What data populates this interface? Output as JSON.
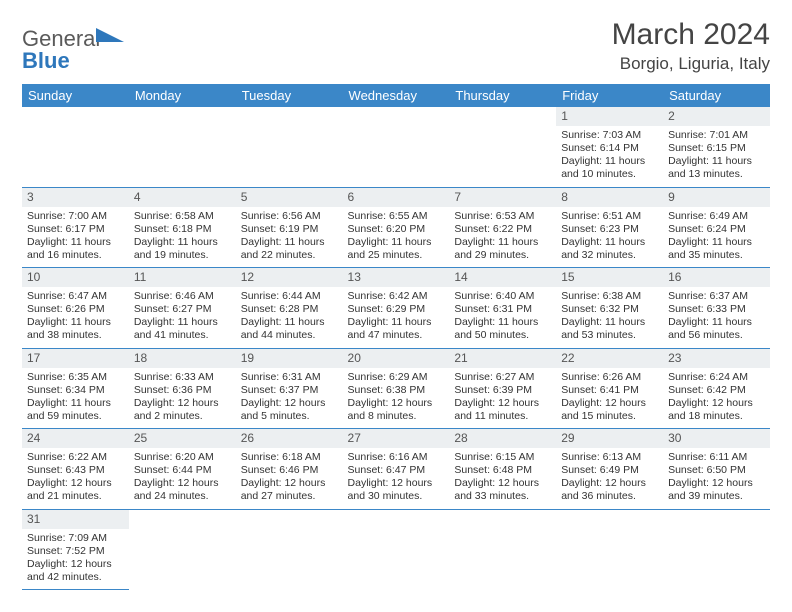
{
  "brand": {
    "name_a": "General",
    "name_b": "Blue"
  },
  "title": "March 2024",
  "location": "Borgio, Liguria, Italy",
  "colors": {
    "header_bg": "#3b87c8",
    "header_text": "#ffffff",
    "daynum_bg": "#eceff1",
    "row_divider": "#3b87c8",
    "text": "#333333",
    "brand_gray": "#5a5a5a",
    "brand_blue": "#2e77bb"
  },
  "day_headers": [
    "Sunday",
    "Monday",
    "Tuesday",
    "Wednesday",
    "Thursday",
    "Friday",
    "Saturday"
  ],
  "weeks": [
    [
      {
        "empty": true
      },
      {
        "empty": true
      },
      {
        "empty": true
      },
      {
        "empty": true
      },
      {
        "empty": true
      },
      {
        "n": "1",
        "sunrise": "Sunrise: 7:03 AM",
        "sunset": "Sunset: 6:14 PM",
        "daylight": "Daylight: 11 hours and 10 minutes."
      },
      {
        "n": "2",
        "sunrise": "Sunrise: 7:01 AM",
        "sunset": "Sunset: 6:15 PM",
        "daylight": "Daylight: 11 hours and 13 minutes."
      }
    ],
    [
      {
        "n": "3",
        "sunrise": "Sunrise: 7:00 AM",
        "sunset": "Sunset: 6:17 PM",
        "daylight": "Daylight: 11 hours and 16 minutes."
      },
      {
        "n": "4",
        "sunrise": "Sunrise: 6:58 AM",
        "sunset": "Sunset: 6:18 PM",
        "daylight": "Daylight: 11 hours and 19 minutes."
      },
      {
        "n": "5",
        "sunrise": "Sunrise: 6:56 AM",
        "sunset": "Sunset: 6:19 PM",
        "daylight": "Daylight: 11 hours and 22 minutes."
      },
      {
        "n": "6",
        "sunrise": "Sunrise: 6:55 AM",
        "sunset": "Sunset: 6:20 PM",
        "daylight": "Daylight: 11 hours and 25 minutes."
      },
      {
        "n": "7",
        "sunrise": "Sunrise: 6:53 AM",
        "sunset": "Sunset: 6:22 PM",
        "daylight": "Daylight: 11 hours and 29 minutes."
      },
      {
        "n": "8",
        "sunrise": "Sunrise: 6:51 AM",
        "sunset": "Sunset: 6:23 PM",
        "daylight": "Daylight: 11 hours and 32 minutes."
      },
      {
        "n": "9",
        "sunrise": "Sunrise: 6:49 AM",
        "sunset": "Sunset: 6:24 PM",
        "daylight": "Daylight: 11 hours and 35 minutes."
      }
    ],
    [
      {
        "n": "10",
        "sunrise": "Sunrise: 6:47 AM",
        "sunset": "Sunset: 6:26 PM",
        "daylight": "Daylight: 11 hours and 38 minutes."
      },
      {
        "n": "11",
        "sunrise": "Sunrise: 6:46 AM",
        "sunset": "Sunset: 6:27 PM",
        "daylight": "Daylight: 11 hours and 41 minutes."
      },
      {
        "n": "12",
        "sunrise": "Sunrise: 6:44 AM",
        "sunset": "Sunset: 6:28 PM",
        "daylight": "Daylight: 11 hours and 44 minutes."
      },
      {
        "n": "13",
        "sunrise": "Sunrise: 6:42 AM",
        "sunset": "Sunset: 6:29 PM",
        "daylight": "Daylight: 11 hours and 47 minutes."
      },
      {
        "n": "14",
        "sunrise": "Sunrise: 6:40 AM",
        "sunset": "Sunset: 6:31 PM",
        "daylight": "Daylight: 11 hours and 50 minutes."
      },
      {
        "n": "15",
        "sunrise": "Sunrise: 6:38 AM",
        "sunset": "Sunset: 6:32 PM",
        "daylight": "Daylight: 11 hours and 53 minutes."
      },
      {
        "n": "16",
        "sunrise": "Sunrise: 6:37 AM",
        "sunset": "Sunset: 6:33 PM",
        "daylight": "Daylight: 11 hours and 56 minutes."
      }
    ],
    [
      {
        "n": "17",
        "sunrise": "Sunrise: 6:35 AM",
        "sunset": "Sunset: 6:34 PM",
        "daylight": "Daylight: 11 hours and 59 minutes."
      },
      {
        "n": "18",
        "sunrise": "Sunrise: 6:33 AM",
        "sunset": "Sunset: 6:36 PM",
        "daylight": "Daylight: 12 hours and 2 minutes."
      },
      {
        "n": "19",
        "sunrise": "Sunrise: 6:31 AM",
        "sunset": "Sunset: 6:37 PM",
        "daylight": "Daylight: 12 hours and 5 minutes."
      },
      {
        "n": "20",
        "sunrise": "Sunrise: 6:29 AM",
        "sunset": "Sunset: 6:38 PM",
        "daylight": "Daylight: 12 hours and 8 minutes."
      },
      {
        "n": "21",
        "sunrise": "Sunrise: 6:27 AM",
        "sunset": "Sunset: 6:39 PM",
        "daylight": "Daylight: 12 hours and 11 minutes."
      },
      {
        "n": "22",
        "sunrise": "Sunrise: 6:26 AM",
        "sunset": "Sunset: 6:41 PM",
        "daylight": "Daylight: 12 hours and 15 minutes."
      },
      {
        "n": "23",
        "sunrise": "Sunrise: 6:24 AM",
        "sunset": "Sunset: 6:42 PM",
        "daylight": "Daylight: 12 hours and 18 minutes."
      }
    ],
    [
      {
        "n": "24",
        "sunrise": "Sunrise: 6:22 AM",
        "sunset": "Sunset: 6:43 PM",
        "daylight": "Daylight: 12 hours and 21 minutes."
      },
      {
        "n": "25",
        "sunrise": "Sunrise: 6:20 AM",
        "sunset": "Sunset: 6:44 PM",
        "daylight": "Daylight: 12 hours and 24 minutes."
      },
      {
        "n": "26",
        "sunrise": "Sunrise: 6:18 AM",
        "sunset": "Sunset: 6:46 PM",
        "daylight": "Daylight: 12 hours and 27 minutes."
      },
      {
        "n": "27",
        "sunrise": "Sunrise: 6:16 AM",
        "sunset": "Sunset: 6:47 PM",
        "daylight": "Daylight: 12 hours and 30 minutes."
      },
      {
        "n": "28",
        "sunrise": "Sunrise: 6:15 AM",
        "sunset": "Sunset: 6:48 PM",
        "daylight": "Daylight: 12 hours and 33 minutes."
      },
      {
        "n": "29",
        "sunrise": "Sunrise: 6:13 AM",
        "sunset": "Sunset: 6:49 PM",
        "daylight": "Daylight: 12 hours and 36 minutes."
      },
      {
        "n": "30",
        "sunrise": "Sunrise: 6:11 AM",
        "sunset": "Sunset: 6:50 PM",
        "daylight": "Daylight: 12 hours and 39 minutes."
      }
    ],
    [
      {
        "n": "31",
        "sunrise": "Sunrise: 7:09 AM",
        "sunset": "Sunset: 7:52 PM",
        "daylight": "Daylight: 12 hours and 42 minutes."
      },
      {
        "empty": true
      },
      {
        "empty": true
      },
      {
        "empty": true
      },
      {
        "empty": true
      },
      {
        "empty": true
      },
      {
        "empty": true
      }
    ]
  ]
}
